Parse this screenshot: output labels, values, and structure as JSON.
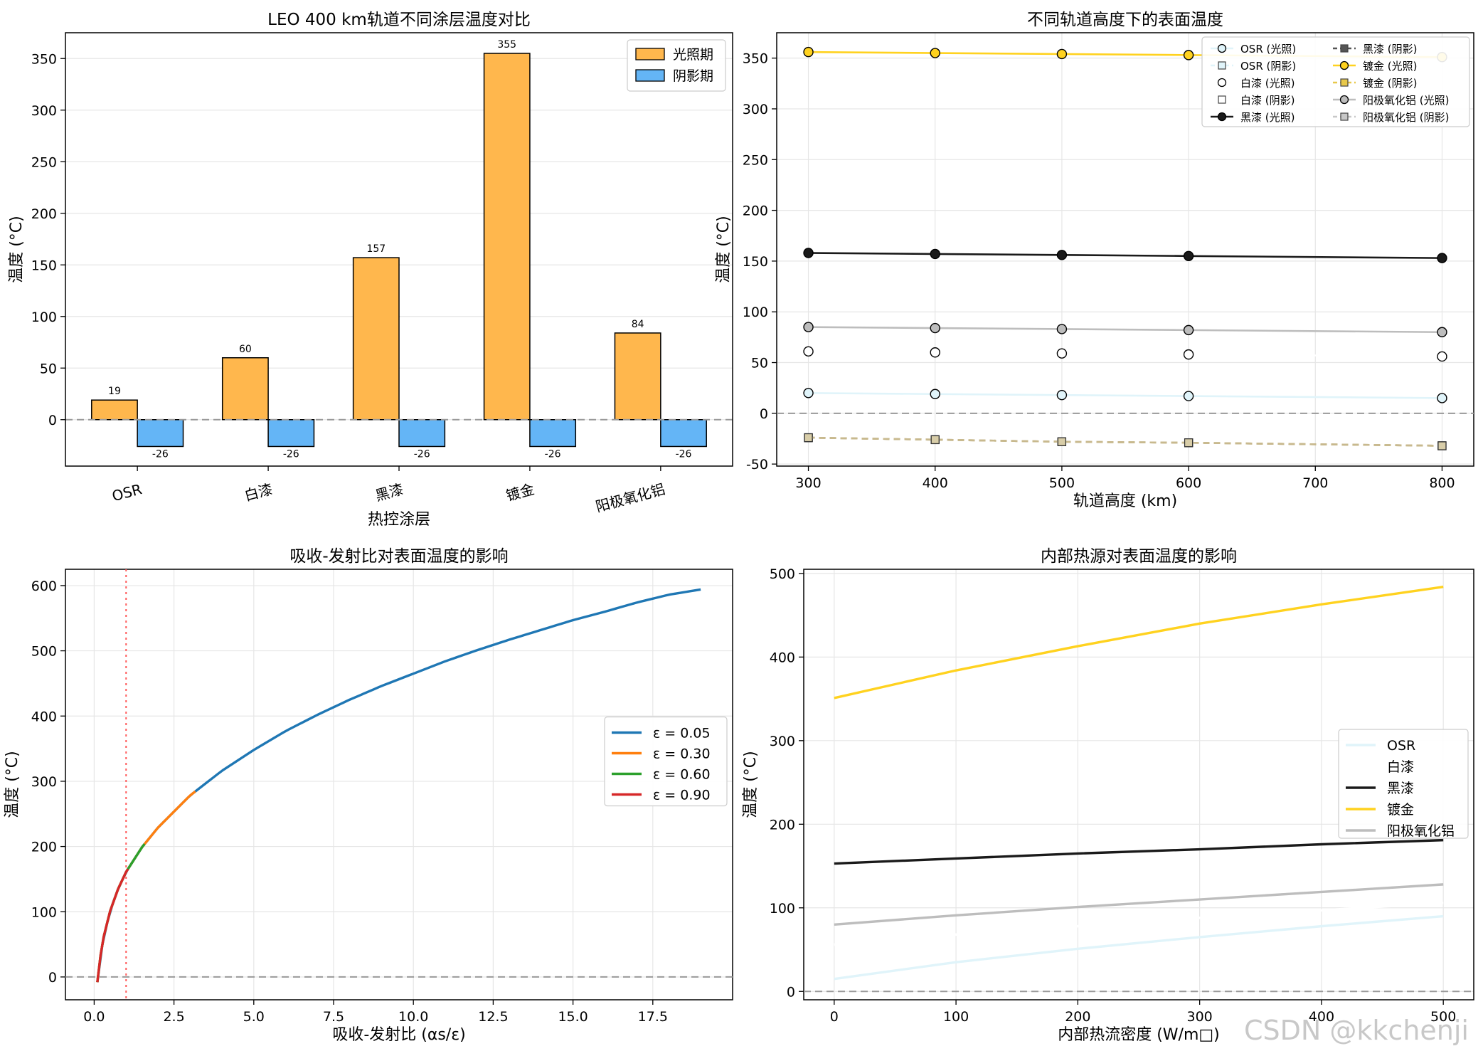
{
  "watermark": "CSDN @kkchenji",
  "chart_data": [
    {
      "id": "coating-bars",
      "type": "bar",
      "title": "LEO 400 km轨道不同涂层温度对比",
      "xlabel": "热控涂层",
      "ylabel": "温度 (°C)",
      "categories": [
        "OSR",
        "白漆",
        "黑漆",
        "镀金",
        "阳极氧化铝"
      ],
      "series": [
        {
          "name": "光照期",
          "values": [
            19,
            60,
            157,
            355,
            84
          ],
          "color": "#ffb74d"
        },
        {
          "name": "阴影期",
          "values": [
            -26,
            -26,
            -26,
            -26,
            -26
          ],
          "color": "#64b5f6"
        }
      ],
      "ylim": [
        -45,
        375
      ],
      "yticks": [
        0,
        50,
        100,
        150,
        200,
        250,
        300,
        350
      ],
      "grid": true,
      "legend": "top-right"
    },
    {
      "id": "altitude-lines",
      "type": "line",
      "title": "不同轨道高度下的表面温度",
      "xlabel": "轨道高度 (km)",
      "ylabel": "温度 (°C)",
      "x": [
        300,
        400,
        500,
        600,
        800
      ],
      "xlim": [
        275,
        825
      ],
      "ylim": [
        -52,
        375
      ],
      "xticks": [
        300,
        400,
        500,
        600,
        700,
        800
      ],
      "yticks": [
        -50,
        0,
        50,
        100,
        150,
        200,
        250,
        300,
        350
      ],
      "grid": true,
      "legend": "top-right",
      "series": [
        {
          "name": "OSR (光照)",
          "values": [
            20,
            19,
            18,
            17,
            15
          ],
          "color": "#e0f4fa",
          "marker": "circle",
          "dash": false
        },
        {
          "name": "OSR (阴影)",
          "values": [
            -24,
            -26,
            -28,
            -29,
            -32
          ],
          "color": "#e0f4fa",
          "marker": "square",
          "dash": true
        },
        {
          "name": "白漆 (光照)",
          "values": [
            61,
            60,
            59,
            58,
            56
          ],
          "color": "#ffffff",
          "marker": "circle",
          "dash": false
        },
        {
          "name": "白漆 (阴影)",
          "values": [
            -24,
            -26,
            -28,
            -29,
            -32
          ],
          "color": "#ffffff",
          "marker": "square",
          "dash": true
        },
        {
          "name": "黑漆 (光照)",
          "values": [
            158,
            157,
            156,
            155,
            153
          ],
          "color": "#1a1a1a",
          "marker": "circle",
          "dash": false
        },
        {
          "name": "黑漆 (阴影)",
          "values": [
            -24,
            -26,
            -28,
            -29,
            -32
          ],
          "color": "#555555",
          "marker": "square",
          "dash": true
        },
        {
          "name": "镀金 (光照)",
          "values": [
            356,
            355,
            354,
            353,
            351
          ],
          "color": "#ffd21f",
          "marker": "circle",
          "dash": false
        },
        {
          "name": "镀金 (阴影)",
          "values": [
            -24,
            -26,
            -28,
            -29,
            -32
          ],
          "color": "#e8c84a",
          "marker": "square",
          "dash": true
        },
        {
          "name": "阳极氧化铝 (光照)",
          "values": [
            85,
            84,
            83,
            82,
            80
          ],
          "color": "#bdbdbd",
          "marker": "circle",
          "dash": false
        },
        {
          "name": "阳极氧化铝 (阴影)",
          "values": [
            -24,
            -26,
            -28,
            -29,
            -32
          ],
          "color": "#c8c8c8",
          "marker": "square",
          "dash": true
        }
      ]
    },
    {
      "id": "ratio-curve",
      "type": "line",
      "title": "吸收-发射比对表面温度的影响",
      "xlabel": "吸收-发射比 (αs/ε)",
      "ylabel": "温度 (°C)",
      "xlim": [
        -0.9,
        20.0
      ],
      "ylim": [
        -35,
        625
      ],
      "xticks": [
        0.0,
        2.5,
        5.0,
        7.5,
        10.0,
        12.5,
        15.0,
        17.5
      ],
      "xtick_labels": [
        "0.0",
        "2.5",
        "5.0",
        "7.5",
        "10.0",
        "12.5",
        "15.0",
        "17.5"
      ],
      "yticks": [
        0,
        100,
        200,
        300,
        400,
        500,
        600
      ],
      "reference_x": 1.0,
      "grid": true,
      "legend": "center-right",
      "series": [
        {
          "name": "ε = 0.05",
          "x_range": [
            0.1,
            19
          ],
          "color": "#1f77b4"
        },
        {
          "name": "ε = 0.30",
          "x_range": [
            0.1,
            3.17
          ],
          "color": "#ff7f0e"
        },
        {
          "name": "ε = 0.60",
          "x_range": [
            0.1,
            1.58
          ],
          "color": "#2ca02c"
        },
        {
          "name": "ε = 0.90",
          "x_range": [
            0.1,
            1.06
          ],
          "color": "#d62728"
        }
      ],
      "curve_points": {
        "x": [
          0.1,
          0.2,
          0.3,
          0.5,
          0.75,
          1.0,
          1.5,
          2.0,
          3.0,
          4.0,
          5.0,
          6.0,
          7.0,
          8.0,
          9.0,
          10.0,
          11.0,
          12.0,
          13.0,
          14.0,
          15.0,
          16.0,
          17.0,
          18.0,
          19.0
        ],
        "y": [
          -8,
          33,
          62,
          101,
          135,
          161,
          199,
          229,
          278,
          316,
          348,
          377,
          402,
          425,
          446,
          465,
          484,
          501,
          517,
          532,
          547,
          560,
          574,
          586,
          594
        ]
      }
    },
    {
      "id": "internal-heat",
      "type": "line",
      "title": "内部热源对表面温度的影响",
      "xlabel": "内部热流密度 (W/m□)",
      "ylabel": "温度 (°C)",
      "x": [
        0,
        100,
        200,
        300,
        400,
        500
      ],
      "xlim": [
        -25,
        525
      ],
      "ylim": [
        -10,
        505
      ],
      "xticks": [
        0,
        100,
        200,
        300,
        400,
        500
      ],
      "yticks": [
        0,
        100,
        200,
        300,
        400,
        500
      ],
      "grid": true,
      "legend": "center-right",
      "series": [
        {
          "name": "OSR",
          "values": [
            15,
            35,
            51,
            65,
            78,
            90
          ],
          "color": "#e0f4fa"
        },
        {
          "name": "白漆",
          "values": [
            56,
            68,
            78,
            88,
            97,
            106
          ],
          "color": "#ffffff"
        },
        {
          "name": "黑漆",
          "values": [
            153,
            159,
            165,
            170,
            176,
            181
          ],
          "color": "#1a1a1a"
        },
        {
          "name": "镀金",
          "values": [
            351,
            384,
            413,
            440,
            463,
            484
          ],
          "color": "#ffd21f"
        },
        {
          "name": "阳极氧化铝",
          "values": [
            80,
            91,
            101,
            110,
            119,
            128
          ],
          "color": "#bdbdbd"
        }
      ]
    }
  ]
}
